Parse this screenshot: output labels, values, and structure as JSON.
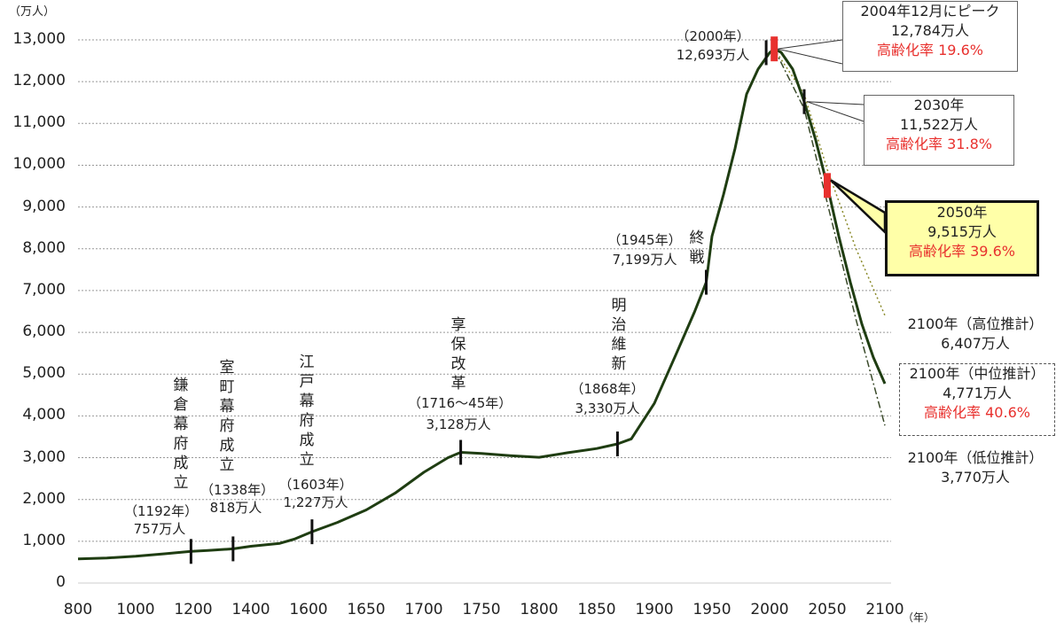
{
  "chart_data": {
    "type": "line",
    "title": "",
    "ylabel": "（万人）",
    "xlabel": "（年）",
    "ylim": [
      0,
      13000
    ],
    "yticks": [
      "0",
      "1,000",
      "2,000",
      "3,000",
      "4,000",
      "5,000",
      "6,000",
      "7,000",
      "8,000",
      "9,000",
      "10,000",
      "11,000",
      "12,000",
      "13,000"
    ],
    "xticks": [
      "800",
      "1000",
      "1200",
      "1400",
      "1600",
      "1650",
      "1700",
      "1750",
      "1800",
      "1850",
      "1900",
      "1950",
      "2000",
      "2050",
      "2100"
    ],
    "grid": true,
    "series": [
      {
        "name": "実績・中位推計",
        "color": "#1f3d12",
        "x": [
          800,
          900,
          1000,
          1100,
          1192,
          1250,
          1338,
          1400,
          1500,
          1550,
          1603,
          1625,
          1650,
          1675,
          1700,
          1721,
          1732,
          1750,
          1775,
          1800,
          1825,
          1850,
          1868,
          1880,
          1900,
          1920,
          1935,
          1945,
          1950,
          1960,
          1970,
          1980,
          1990,
          2000,
          2004,
          2010,
          2020,
          2030,
          2040,
          2050,
          2060,
          2070,
          2080,
          2090,
          2100
        ],
        "y": [
          580,
          600,
          640,
          700,
          757,
          780,
          818,
          880,
          950,
          1050,
          1227,
          1450,
          1750,
          2150,
          2650,
          3000,
          3128,
          3100,
          3050,
          3010,
          3120,
          3220,
          3330,
          3450,
          4300,
          5550,
          6500,
          7199,
          8300,
          9300,
          10400,
          11700,
          12300,
          12693,
          12784,
          12700,
          12300,
          11522,
          10600,
          9515,
          8300,
          7200,
          6200,
          5400,
          4771
        ]
      },
      {
        "name": "高位推計",
        "color": "#8a8a2a",
        "x": [
          2004,
          2030,
          2050,
          2075,
          2100
        ],
        "y": [
          12784,
          11700,
          9900,
          8000,
          6407
        ]
      },
      {
        "name": "低位推計",
        "color": "#3a4a2a",
        "x": [
          2004,
          2030,
          2050,
          2075,
          2100
        ],
        "y": [
          12784,
          11350,
          9100,
          6300,
          3770
        ]
      }
    ],
    "annotations": {
      "kamakura": {
        "vertical": "鎌倉幕府成立",
        "year": "（1192年）",
        "pop": "757万人"
      },
      "muromachi": {
        "vertical": "室町幕府成立",
        "year": "（1338年）",
        "pop": "818万人"
      },
      "edo": {
        "vertical": "江戸幕府成立",
        "year": "（1603年）",
        "pop": "1,227万人"
      },
      "kyoho": {
        "vertical": "享保改革",
        "year": "（1716～45年）",
        "pop": "3,128万人"
      },
      "meiji": {
        "vertical": "明治維新",
        "year": "（1868年）",
        "pop": "3,330万人"
      },
      "war": {
        "vertical": "終戦",
        "year": "（1945年）",
        "pop": "7,199万人"
      },
      "y2000": {
        "year": "（2000年）",
        "pop": "12,693万人"
      },
      "peak": {
        "line1": "2004年12月にピーク",
        "line2": "12,784万人",
        "line3": "高齢化率 19.6%"
      },
      "y2030": {
        "line1": "2030年",
        "line2": "11,522万人",
        "line3": "高齢化率 31.8%"
      },
      "y2050": {
        "line1": "2050年",
        "line2": "9,515万人",
        "line3": "高齢化率 39.6%"
      },
      "high": {
        "line1": "2100年（高位推計）",
        "line2": "6,407万人"
      },
      "mid": {
        "line1": "2100年（中位推計）",
        "line2": "4,771万人",
        "line3": "高齢化率 40.6%"
      },
      "low": {
        "line1": "2100年（低位推計）",
        "line2": "3,770万人"
      }
    }
  }
}
